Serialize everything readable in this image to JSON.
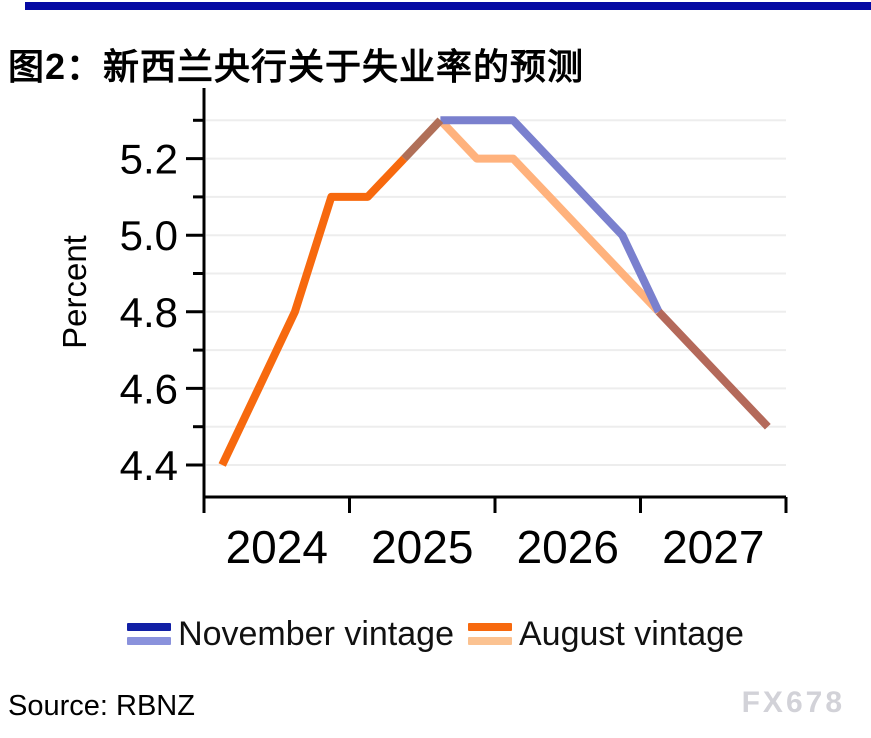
{
  "page": {
    "top_bar_color": "#0509A3"
  },
  "header": {
    "title": "图2：新西兰央行关于失业率的预测"
  },
  "chart_data": {
    "type": "line",
    "title": "图2：新西兰央行关于失业率的预测",
    "xlabel": "",
    "ylabel": "Percent",
    "ylim": [
      4.32,
      5.37
    ],
    "grid": true,
    "grid_color": "#ededed",
    "axis_color": "#000000",
    "legend_position": "bottom",
    "quarters": [
      "2024Q1",
      "2024Q2",
      "2024Q3",
      "2024Q4",
      "2025Q1",
      "2025Q2",
      "2025Q3",
      "2025Q4",
      "2026Q1",
      "2026Q2",
      "2026Q3",
      "2026Q4",
      "2027Q1",
      "2027Q2",
      "2027Q3",
      "2027Q4"
    ],
    "series": [
      {
        "name": "November vintage",
        "values": [
          null,
          null,
          null,
          null,
          null,
          5.2,
          5.3,
          5.3,
          5.3,
          5.2,
          5.1,
          5.0,
          4.8,
          4.7,
          4.6,
          4.5
        ]
      },
      {
        "name": "August vintage",
        "values": [
          4.4,
          4.6,
          4.8,
          5.1,
          5.1,
          5.2,
          5.3,
          5.2,
          5.2,
          5.1,
          5.0,
          4.9,
          4.8,
          4.7,
          4.6,
          4.5
        ]
      }
    ],
    "yticks_major_labels": [
      "4.4",
      "4.6",
      "4.8",
      "5.0",
      "5.2"
    ],
    "yticks_minor": [
      4.5,
      4.7,
      4.9,
      5.1,
      5.3
    ],
    "year_labels": [
      "2024",
      "2025",
      "2026",
      "2027"
    ],
    "draw_segments": [
      {
        "name": "august-forecast-line",
        "color": "#FFB27D",
        "points": [
          [
            6,
            5.3
          ],
          [
            7,
            5.2
          ],
          [
            8,
            5.2
          ],
          [
            9,
            5.1
          ],
          [
            10,
            5.0
          ],
          [
            11,
            4.9
          ],
          [
            12,
            4.8
          ]
        ]
      },
      {
        "name": "november-forecast-line",
        "color": "#7A80CE",
        "points": [
          [
            6,
            5.3
          ],
          [
            7,
            5.3
          ],
          [
            8,
            5.3
          ],
          [
            9,
            5.2
          ],
          [
            10,
            5.1
          ],
          [
            11,
            5.0
          ],
          [
            12,
            4.8
          ]
        ]
      },
      {
        "name": "overlap-rise-line",
        "color": "#B06F58",
        "points": [
          [
            5,
            5.2
          ],
          [
            6,
            5.3
          ]
        ]
      },
      {
        "name": "overlap-tail-line",
        "color": "#B4695A",
        "points": [
          [
            12,
            4.8
          ],
          [
            13,
            4.7
          ],
          [
            14,
            4.6
          ],
          [
            15,
            4.5
          ]
        ]
      },
      {
        "name": "august-actual-line",
        "color": "#F7690E",
        "points": [
          [
            0,
            4.4
          ],
          [
            1,
            4.6
          ],
          [
            2,
            4.8
          ],
          [
            3,
            5.1
          ],
          [
            4,
            5.1
          ],
          [
            5,
            5.2
          ]
        ]
      }
    ]
  },
  "legend": {
    "items": [
      {
        "label": "November vintage",
        "colors": [
          "#111FA5",
          "#8A92DC"
        ]
      },
      {
        "label": "August vintage",
        "colors": [
          "#F7690E",
          "#FBC291"
        ]
      }
    ]
  },
  "footer": {
    "source": "Source: RBNZ",
    "watermark": "FX678"
  }
}
